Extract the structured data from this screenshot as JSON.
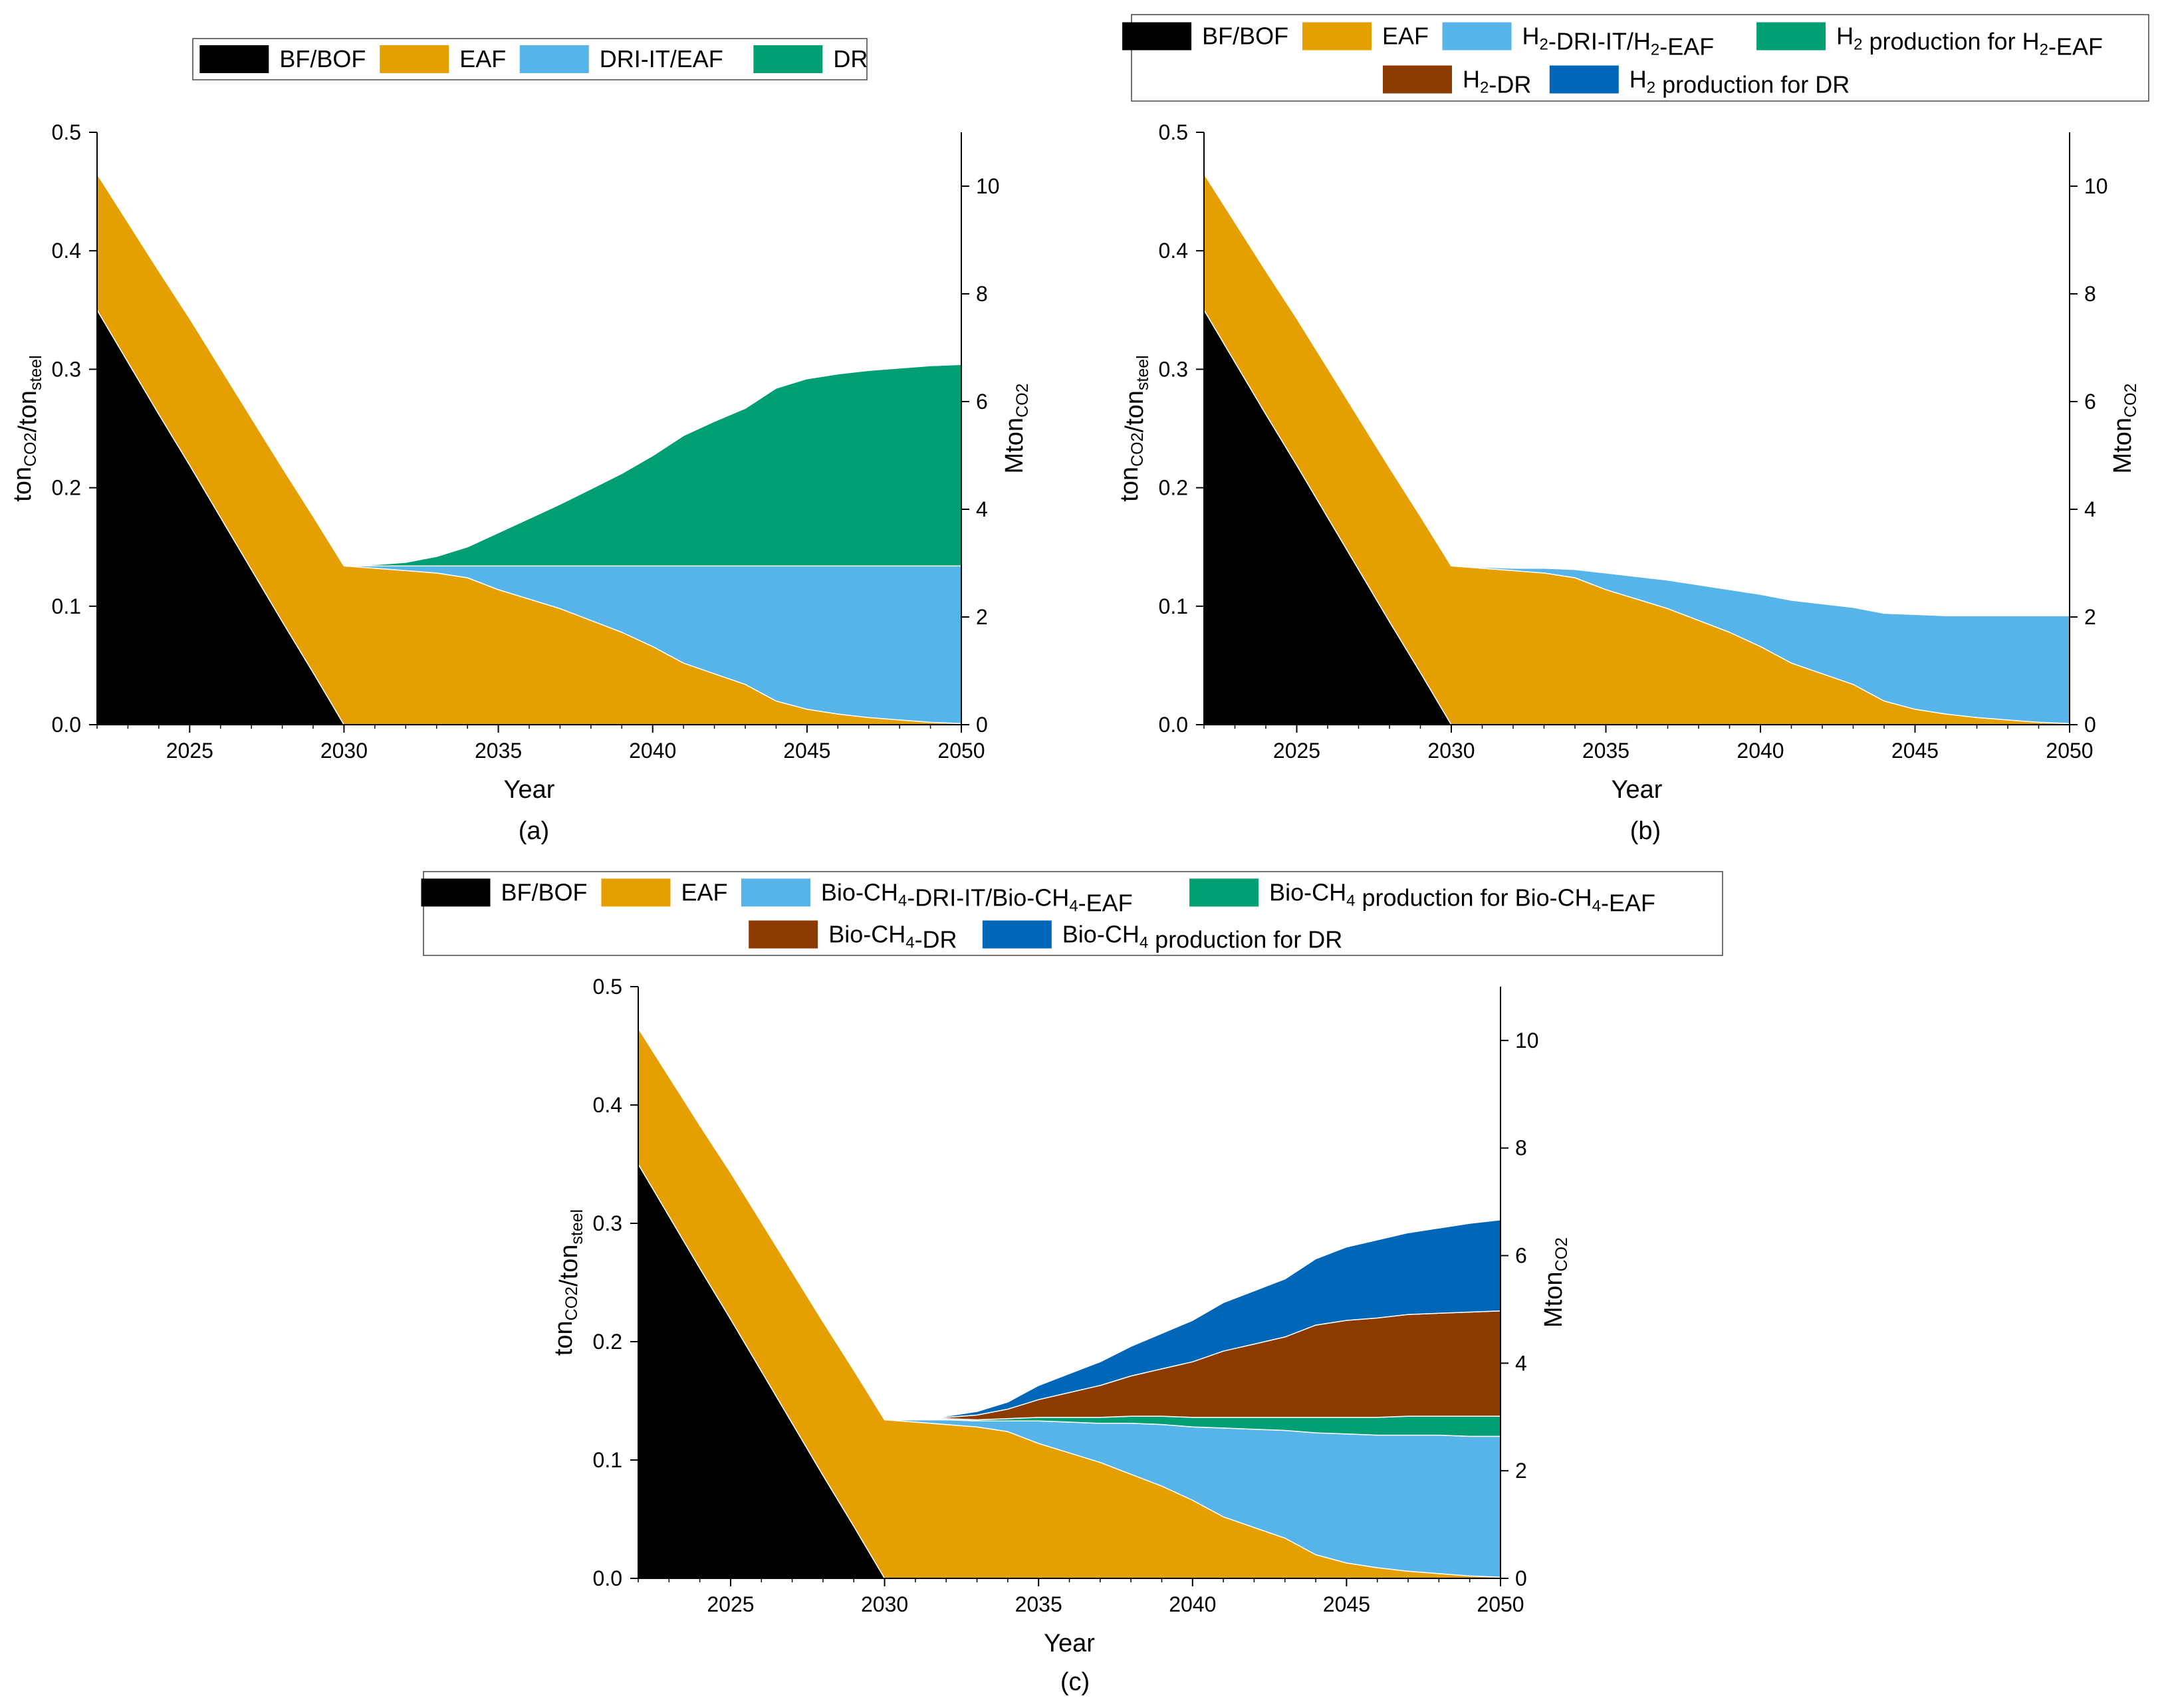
{
  "colors": {
    "bfbof": "#000000",
    "eaf": "#e69f00",
    "dri": "#56b4e9",
    "green": "#009e73",
    "brown": "#8b3a00",
    "blue": "#0066b8"
  },
  "chart_data": [
    {
      "type": "area",
      "id": "a",
      "caption": "(a)",
      "xlabel": "Year",
      "ylabel": "ton_CO2/ton_steel",
      "y2label": "Mton_CO2",
      "xlim": [
        2022,
        2050
      ],
      "ylim": [
        0,
        0.5
      ],
      "y2lim": [
        0,
        11
      ],
      "xticks": [
        "2025",
        "2030",
        "2035",
        "2040",
        "2045",
        "2050"
      ],
      "yticks": [
        "0.0",
        "0.1",
        "0.2",
        "0.3",
        "0.4",
        "0.5"
      ],
      "y2ticks": [
        "0",
        "2",
        "4",
        "6",
        "8",
        "10"
      ],
      "legend": [
        {
          "label": "BF/BOF",
          "color_key": "bfbof"
        },
        {
          "label": "EAF",
          "color_key": "eaf"
        },
        {
          "label": "DRI-IT/EAF",
          "color_key": "dri"
        },
        {
          "label": "DR",
          "color_key": "green"
        }
      ],
      "x": [
        2022,
        2023,
        2024,
        2025,
        2026,
        2027,
        2028,
        2029,
        2030,
        2031,
        2032,
        2033,
        2034,
        2035,
        2036,
        2037,
        2038,
        2039,
        2040,
        2041,
        2042,
        2043,
        2044,
        2045,
        2046,
        2047,
        2048,
        2049,
        2050
      ],
      "series": [
        {
          "name": "BF/BOF",
          "color_key": "bfbof",
          "values": [
            0.35,
            0.306,
            0.262,
            0.219,
            0.175,
            0.131,
            0.087,
            0.044,
            0.0,
            0,
            0,
            0,
            0,
            0,
            0,
            0,
            0,
            0,
            0,
            0,
            0,
            0,
            0,
            0,
            0,
            0,
            0,
            0,
            0
          ]
        },
        {
          "name": "EAF",
          "color_key": "eaf",
          "values": [
            0.115,
            0.118,
            0.121,
            0.124,
            0.126,
            0.128,
            0.13,
            0.132,
            0.134,
            0.132,
            0.13,
            0.128,
            0.124,
            0.114,
            0.106,
            0.098,
            0.088,
            0.078,
            0.066,
            0.052,
            0.043,
            0.034,
            0.02,
            0.013,
            0.009,
            0.006,
            0.004,
            0.002,
            0.001
          ]
        },
        {
          "name": "DRI-IT/EAF",
          "color_key": "dri",
          "values": [
            0,
            0,
            0,
            0,
            0,
            0,
            0,
            0,
            0,
            0.002,
            0.004,
            0.006,
            0.01,
            0.02,
            0.028,
            0.036,
            0.046,
            0.056,
            0.068,
            0.082,
            0.091,
            0.1,
            0.114,
            0.121,
            0.125,
            0.128,
            0.13,
            0.132,
            0.133
          ]
        },
        {
          "name": "DR",
          "color_key": "green",
          "values": [
            0,
            0,
            0,
            0,
            0,
            0,
            0,
            0,
            0,
            0.001,
            0.003,
            0.008,
            0.016,
            0.028,
            0.04,
            0.052,
            0.065,
            0.078,
            0.093,
            0.11,
            0.122,
            0.133,
            0.15,
            0.158,
            0.162,
            0.165,
            0.167,
            0.169,
            0.17
          ]
        }
      ]
    },
    {
      "type": "area",
      "id": "b",
      "caption": "(b)",
      "xlabel": "Year",
      "ylabel": "ton_CO2/ton_steel",
      "y2label": "Mton_CO2",
      "xlim": [
        2022,
        2050
      ],
      "ylim": [
        0,
        0.5
      ],
      "y2lim": [
        0,
        11
      ],
      "xticks": [
        "2025",
        "2030",
        "2035",
        "2040",
        "2045",
        "2050"
      ],
      "yticks": [
        "0.0",
        "0.1",
        "0.2",
        "0.3",
        "0.4",
        "0.5"
      ],
      "y2ticks": [
        "0",
        "2",
        "4",
        "6",
        "8",
        "10"
      ],
      "legend": [
        {
          "label": "BF/BOF",
          "color_key": "bfbof"
        },
        {
          "label": "EAF",
          "color_key": "eaf"
        },
        {
          "label": "H₂-DRI-IT/H₂-EAF",
          "color_key": "dri"
        },
        {
          "label": "H₂ production for H₂-EAF",
          "color_key": "green"
        },
        {
          "label": "H₂-DR",
          "color_key": "brown"
        },
        {
          "label": "H₂ production for DR",
          "color_key": "blue"
        }
      ],
      "x": [
        2022,
        2023,
        2024,
        2025,
        2026,
        2027,
        2028,
        2029,
        2030,
        2031,
        2032,
        2033,
        2034,
        2035,
        2036,
        2037,
        2038,
        2039,
        2040,
        2041,
        2042,
        2043,
        2044,
        2045,
        2046,
        2047,
        2048,
        2049,
        2050
      ],
      "series": [
        {
          "name": "BF/BOF",
          "color_key": "bfbof",
          "values": [
            0.35,
            0.306,
            0.262,
            0.219,
            0.175,
            0.131,
            0.087,
            0.044,
            0.0,
            0,
            0,
            0,
            0,
            0,
            0,
            0,
            0,
            0,
            0,
            0,
            0,
            0,
            0,
            0,
            0,
            0,
            0,
            0,
            0
          ]
        },
        {
          "name": "EAF",
          "color_key": "eaf",
          "values": [
            0.115,
            0.118,
            0.121,
            0.124,
            0.126,
            0.128,
            0.13,
            0.132,
            0.134,
            0.132,
            0.13,
            0.128,
            0.124,
            0.114,
            0.106,
            0.098,
            0.088,
            0.078,
            0.066,
            0.052,
            0.043,
            0.034,
            0.02,
            0.013,
            0.009,
            0.006,
            0.004,
            0.002,
            0.001
          ]
        },
        {
          "name": "H₂-DRI-IT/H₂-EAF",
          "color_key": "dri",
          "values": [
            0,
            0,
            0,
            0,
            0,
            0,
            0,
            0,
            0,
            0.001,
            0.002,
            0.004,
            0.007,
            0.014,
            0.019,
            0.024,
            0.03,
            0.036,
            0.044,
            0.053,
            0.059,
            0.065,
            0.074,
            0.08,
            0.083,
            0.086,
            0.088,
            0.09,
            0.091
          ]
        }
      ]
    },
    {
      "type": "area",
      "id": "c",
      "caption": "(c)",
      "xlabel": "Year",
      "ylabel": "ton_CO2/ton_steel",
      "y2label": "Mton_CO2",
      "xlim": [
        2022,
        2050
      ],
      "ylim": [
        0,
        0.5
      ],
      "y2lim": [
        0,
        11
      ],
      "xticks": [
        "2025",
        "2030",
        "2035",
        "2040",
        "2045",
        "2050"
      ],
      "yticks": [
        "0.0",
        "0.1",
        "0.2",
        "0.3",
        "0.4",
        "0.5"
      ],
      "y2ticks": [
        "0",
        "2",
        "4",
        "6",
        "8",
        "10"
      ],
      "legend": [
        {
          "label": "BF/BOF",
          "color_key": "bfbof"
        },
        {
          "label": "EAF",
          "color_key": "eaf"
        },
        {
          "label": "Bio-CH₄-DRI-IT/Bio-CH₄-EAF",
          "color_key": "dri"
        },
        {
          "label": "Bio-CH₄ production for Bio-CH₄-EAF",
          "color_key": "green"
        },
        {
          "label": "Bio-CH₄-DR",
          "color_key": "brown"
        },
        {
          "label": "Bio-CH₄ production for DR",
          "color_key": "blue"
        }
      ],
      "x": [
        2022,
        2023,
        2024,
        2025,
        2026,
        2027,
        2028,
        2029,
        2030,
        2031,
        2032,
        2033,
        2034,
        2035,
        2036,
        2037,
        2038,
        2039,
        2040,
        2041,
        2042,
        2043,
        2044,
        2045,
        2046,
        2047,
        2048,
        2049,
        2050
      ],
      "series": [
        {
          "name": "BF/BOF",
          "color_key": "bfbof",
          "values": [
            0.35,
            0.306,
            0.262,
            0.219,
            0.175,
            0.131,
            0.087,
            0.044,
            0.0,
            0,
            0,
            0,
            0,
            0,
            0,
            0,
            0,
            0,
            0,
            0,
            0,
            0,
            0,
            0,
            0,
            0,
            0,
            0,
            0
          ]
        },
        {
          "name": "EAF",
          "color_key": "eaf",
          "values": [
            0.115,
            0.118,
            0.121,
            0.124,
            0.126,
            0.128,
            0.13,
            0.132,
            0.134,
            0.132,
            0.13,
            0.128,
            0.124,
            0.114,
            0.106,
            0.098,
            0.088,
            0.078,
            0.066,
            0.052,
            0.043,
            0.034,
            0.02,
            0.013,
            0.009,
            0.006,
            0.004,
            0.002,
            0.001
          ]
        },
        {
          "name": "Bio-CH₄-DRI-IT/Bio-CH₄-EAF",
          "color_key": "dri",
          "values": [
            0,
            0,
            0,
            0,
            0,
            0,
            0,
            0,
            0,
            0.002,
            0.004,
            0.005,
            0.009,
            0.019,
            0.026,
            0.033,
            0.043,
            0.052,
            0.062,
            0.075,
            0.083,
            0.091,
            0.103,
            0.109,
            0.112,
            0.115,
            0.117,
            0.118,
            0.119
          ]
        },
        {
          "name": "Bio-CH₄ production for Bio-CH₄-EAF",
          "color_key": "green",
          "values": [
            0,
            0,
            0,
            0,
            0,
            0,
            0,
            0,
            0,
            0.0,
            0.001,
            0.001,
            0.002,
            0.003,
            0.004,
            0.005,
            0.006,
            0.007,
            0.008,
            0.009,
            0.01,
            0.011,
            0.013,
            0.014,
            0.015,
            0.016,
            0.016,
            0.017,
            0.017
          ]
        },
        {
          "name": "Bio-CH₄-DR",
          "color_key": "brown",
          "values": [
            0,
            0,
            0,
            0,
            0,
            0,
            0,
            0,
            0,
            0.0,
            0.001,
            0.004,
            0.008,
            0.015,
            0.021,
            0.027,
            0.034,
            0.04,
            0.047,
            0.056,
            0.062,
            0.068,
            0.078,
            0.082,
            0.084,
            0.086,
            0.087,
            0.088,
            0.089
          ]
        },
        {
          "name": "Bio-CH₄ production for DR",
          "color_key": "blue",
          "values": [
            0,
            0,
            0,
            0,
            0,
            0,
            0,
            0,
            0,
            0.0,
            0.001,
            0.003,
            0.006,
            0.012,
            0.016,
            0.02,
            0.025,
            0.03,
            0.035,
            0.041,
            0.045,
            0.049,
            0.056,
            0.062,
            0.066,
            0.069,
            0.072,
            0.075,
            0.077
          ]
        }
      ]
    }
  ]
}
